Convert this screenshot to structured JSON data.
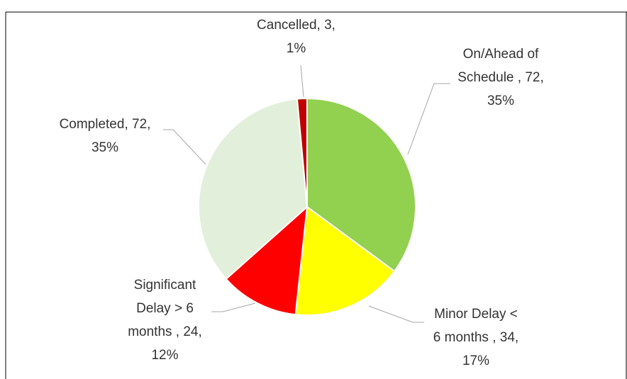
{
  "chart_data": {
    "type": "pie",
    "categories": [
      "On/Ahead of Schedule ",
      "Minor Delay < 6 months ",
      "Significant Delay > 6 months ",
      "Completed",
      "Cancelled"
    ],
    "values": [
      72,
      34,
      24,
      72,
      3
    ],
    "value_labels": [
      "72, 35%",
      "34, 17%",
      "24, 12%",
      "72, 35%",
      "3, 1%"
    ],
    "colors": [
      "#92d050",
      "#ffff00",
      "#ff0000",
      "#e2efda",
      "#c00000"
    ]
  }
}
